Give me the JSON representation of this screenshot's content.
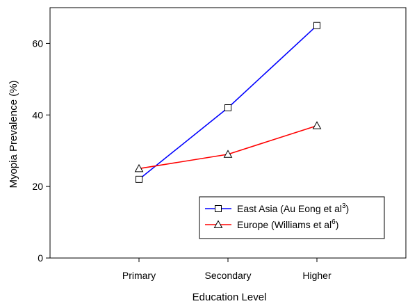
{
  "chart_data": {
    "type": "line",
    "title": "",
    "xlabel": "Education Level",
    "ylabel": "Myopia Prevalence (%)",
    "categories": [
      "Primary",
      "Secondary",
      "Higher"
    ],
    "ylim": [
      0,
      70
    ],
    "yticks": [
      0,
      20,
      40,
      60
    ],
    "grid": false,
    "legend_position": "bottom-right",
    "series": [
      {
        "name": "East Asia (Au Eong et al",
        "name_sup": "3",
        "name_suffix": ")",
        "color": "#0000ff",
        "marker": "square",
        "values": [
          22,
          42,
          65
        ]
      },
      {
        "name": "Europe (Williams et al",
        "name_sup": "6",
        "name_suffix": ")",
        "color": "#ff0000",
        "marker": "triangle",
        "values": [
          25,
          29,
          37
        ]
      }
    ]
  }
}
